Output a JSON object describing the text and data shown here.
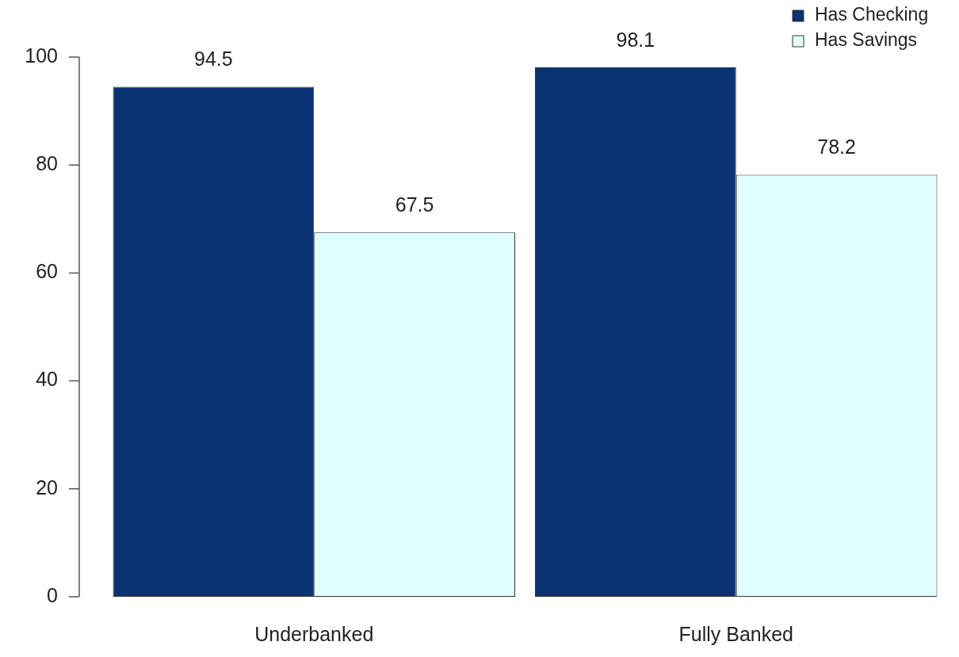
{
  "chart_data": {
    "type": "bar",
    "categories": [
      "Underbanked",
      "Fully Banked"
    ],
    "series": [
      {
        "name": "Has Checking",
        "color": "#0b3272",
        "values": [
          94.5,
          98.1
        ]
      },
      {
        "name": "Has Savings",
        "color": "#e0ffff",
        "values": [
          67.5,
          78.2
        ]
      }
    ],
    "ylim": [
      0,
      100
    ],
    "yticks": [
      0,
      20,
      40,
      60,
      80,
      100
    ],
    "grid": false,
    "legend": "top right",
    "data_labels": true
  }
}
